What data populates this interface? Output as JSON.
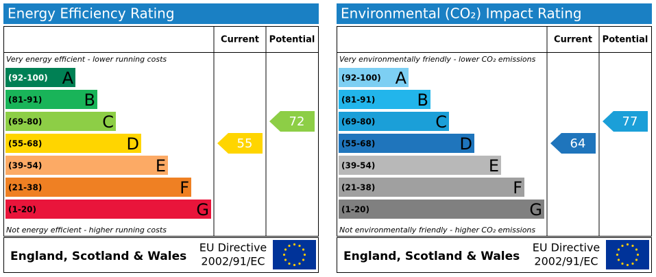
{
  "chart_data": [
    {
      "type": "epc",
      "title": "Energy Efficiency Rating",
      "columns": [
        "Current",
        "Potential"
      ],
      "top_note": "Very energy efficient - lower running costs",
      "bottom_note": "Not energy efficient - higher running costs",
      "bands": [
        {
          "range": "(92-100)",
          "letter": "A",
          "color": "#008054"
        },
        {
          "range": "(81-91)",
          "letter": "B",
          "color": "#19b459"
        },
        {
          "range": "(69-80)",
          "letter": "C",
          "color": "#8dce46"
        },
        {
          "range": "(55-68)",
          "letter": "D",
          "color": "#ffd500"
        },
        {
          "range": "(39-54)",
          "letter": "E",
          "color": "#fcaa65"
        },
        {
          "range": "(21-38)",
          "letter": "F",
          "color": "#ef8023"
        },
        {
          "range": "(1-20)",
          "letter": "G",
          "color": "#e9153b"
        }
      ],
      "current": 55,
      "potential": 72,
      "footer": "England, Scotland & Wales",
      "directive": "EU Directive",
      "directive_code": "2002/91/EC"
    },
    {
      "type": "epc",
      "title": "Environmental (CO₂) Impact Rating",
      "columns": [
        "Current",
        "Potential"
      ],
      "top_note": "Very environmentally friendly - lower CO₂ emissions",
      "bottom_note": "Not environmentally friendly - higher CO₂ emissions",
      "bands": [
        {
          "range": "(92-100)",
          "letter": "A",
          "color": "#7dcff3"
        },
        {
          "range": "(81-91)",
          "letter": "B",
          "color": "#22b5eb"
        },
        {
          "range": "(69-80)",
          "letter": "C",
          "color": "#1b9fd8"
        },
        {
          "range": "(55-68)",
          "letter": "D",
          "color": "#1f75bc"
        },
        {
          "range": "(39-54)",
          "letter": "E",
          "color": "#b8b8b8"
        },
        {
          "range": "(21-38)",
          "letter": "F",
          "color": "#a0a0a0"
        },
        {
          "range": "(1-20)",
          "letter": "G",
          "color": "#808080"
        }
      ],
      "current": 64,
      "potential": 77,
      "footer": "England, Scotland & Wales",
      "directive": "EU Directive",
      "directive_code": "2002/91/EC"
    }
  ]
}
